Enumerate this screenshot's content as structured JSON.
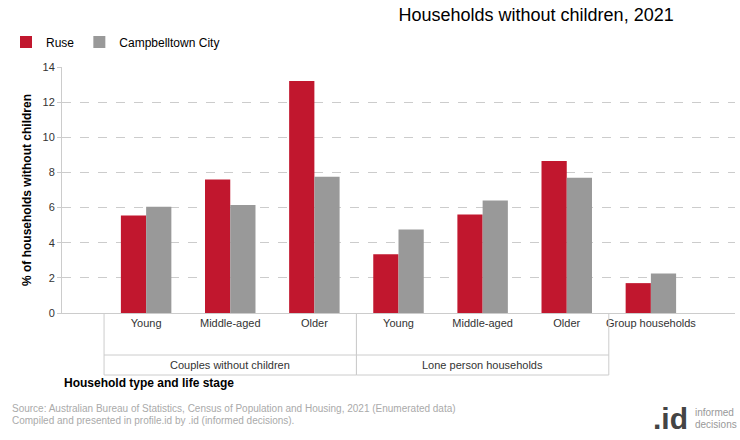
{
  "chart_data": {
    "type": "bar",
    "title": "Households without children, 2021",
    "x_label": "Household type and life stage",
    "y_label": "% of households without children",
    "categories": [
      "Young",
      "Middle-aged",
      "Older",
      "Young",
      "Middle-aged",
      "Older",
      "Group households"
    ],
    "groups": [
      {
        "label": "Couples without children",
        "size": 3
      },
      {
        "label": "Lone person households",
        "size": 3
      }
    ],
    "series": [
      {
        "name": "Ruse",
        "color": "#c1172e",
        "values": [
          5.55,
          7.6,
          13.2,
          3.35,
          5.6,
          8.65,
          1.7
        ]
      },
      {
        "name": "Campbelltown City",
        "color": "#999999",
        "values": [
          6.05,
          6.15,
          7.75,
          4.75,
          6.4,
          7.7,
          2.25
        ]
      }
    ],
    "ylim": [
      0,
      14
    ],
    "yticks": [
      0,
      2,
      4,
      6,
      8,
      10,
      12,
      14
    ],
    "grid": true,
    "legend": "top-left",
    "source": [
      "Source: Australian Bureau of Statistics, Census of Population and Housing, 2021 (Enumerated data)",
      "Compiled and presented in profile.id by .id (informed decisions)."
    ],
    "logo": {
      "mark": ".id",
      "lines": [
        "informed",
        "decisions"
      ]
    }
  }
}
